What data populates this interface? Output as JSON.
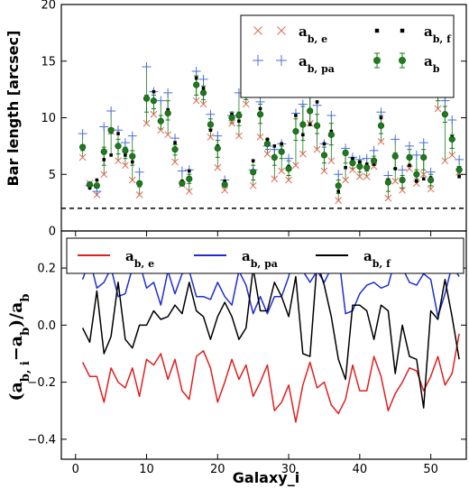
{
  "chart_data": [
    {
      "type": "scatter",
      "ylabel": "Bar length [arcsec]",
      "xlim": [
        -2,
        55
      ],
      "ylim": [
        0,
        20
      ],
      "yticks": [
        "0",
        "5",
        "10",
        "15",
        "20"
      ],
      "reference_line": {
        "y": 2,
        "style": "dashed",
        "color": "#000000"
      },
      "legend_position": "top-right",
      "series": [
        {
          "name": "a_b,e",
          "label_main": "a",
          "label_sub": "b, e",
          "marker": "x",
          "color": "#e06a50",
          "values": [
            6.5,
            4.2,
            3.2,
            5,
            8.8,
            6.2,
            5.8,
            4.5,
            3.2,
            9.5,
            10.3,
            8.9,
            8.5,
            6.1,
            4.1,
            3.5,
            11.5,
            11.2,
            8.3,
            5.6,
            3.6,
            9.5,
            8.4,
            11.2,
            4,
            8.3,
            6.8,
            4.6,
            5.3,
            4.5,
            5.8,
            6.8,
            9.5,
            7.2,
            5.3,
            6.2,
            2.7,
            4.5,
            5.4,
            4.8,
            4.8,
            5.7,
            7.9,
            2.9,
            4.4,
            3.6,
            5.5,
            4.2,
            5,
            3.7,
            10.8,
            6.2,
            6.7,
            5.2
          ]
        },
        {
          "name": "a_b,pa",
          "label_main": "a",
          "label_sub": "b, pa",
          "marker": "+",
          "color": "#4a6fd8",
          "values": [
            8.6,
            4,
            3.5,
            9.2,
            10.6,
            8.9,
            7.8,
            8.4,
            5.2,
            14.5,
            12.3,
            11.5,
            12.2,
            8.2,
            5.3,
            5.4,
            14.1,
            13.4,
            10.3,
            8.4,
            4.5,
            10.2,
            12.2,
            14.2,
            5.4,
            11.4,
            7.5,
            7.2,
            7.7,
            6.4,
            10.4,
            11.2,
            12.2,
            11.1,
            7.7,
            10.2,
            5,
            7.3,
            6.5,
            6.3,
            6.4,
            7.1,
            10.5,
            4.9,
            8.1,
            5.4,
            7.5,
            6.7,
            7.8,
            5.2,
            12.4,
            11.5,
            9.8,
            6.3
          ]
        },
        {
          "name": "a_b,f",
          "label_main": "a",
          "label_sub": "b, f",
          "marker": "square",
          "color": "#000000",
          "values": [
            7.3,
            3.8,
            4.5,
            6.3,
            6.7,
            8.6,
            6.7,
            6.1,
            4.2,
            11.6,
            12.3,
            9.8,
            10.7,
            7.8,
            4.4,
            5.3,
            13.5,
            12.6,
            8.9,
            7.5,
            4.4,
            10.3,
            9.7,
            12.4,
            6.2,
            10.8,
            8.1,
            7.5,
            7.7,
            5.7,
            10.2,
            8.5,
            9.4,
            11.4,
            7.7,
            8.8,
            3.5,
            5.6,
            6.4,
            6.1,
            5.9,
            5.9,
            10,
            4.5,
            5.5,
            4.5,
            5.8,
            4.4,
            4.6,
            4.7,
            12.3,
            11.9,
            8.3,
            4.8
          ]
        },
        {
          "name": "a_b",
          "label_main": "a",
          "label_sub": "b",
          "marker": "circle",
          "color": "#1e7a1e",
          "values": [
            7.4,
            4.1,
            4.0,
            7.0,
            8.9,
            7.5,
            7.1,
            6.6,
            4.2,
            11.7,
            11.5,
            9.7,
            10.4,
            7.2,
            4.2,
            4.6,
            12.9,
            12.2,
            9.4,
            7.3,
            4.1,
            10.0,
            10.2,
            12.5,
            5.2,
            10.3,
            7.7,
            6.5,
            7.0,
            5.5,
            8.8,
            9.4,
            10.6,
            9.3,
            6.7,
            8.5,
            4.0,
            6.9,
            6.0,
            5.7,
            5.6,
            6.2,
            9.3,
            4.3,
            6.6,
            4.5,
            6.5,
            5.0,
            6.5,
            4.5,
            12.1,
            10.3,
            8.1,
            5.4
          ]
        },
        {
          "name": "a_b upper error",
          "values": [
            7.6,
            4.3,
            4.2,
            7.4,
            9.0,
            8.1,
            7.4,
            7.1,
            4.4,
            12.0,
            12.0,
            10.2,
            11.5,
            7.6,
            4.4,
            5.0,
            13.7,
            12.8,
            9.9,
            8.0,
            4.3,
            10.5,
            10.5,
            13.8,
            5.8,
            11.2,
            8.1,
            7.2,
            7.5,
            6.2,
            9.9,
            11.0,
            11.8,
            10.3,
            7.4,
            9.5,
            4.5,
            7.1,
            6.4,
            6.1,
            5.8,
            6.6,
            10.2,
            4.6,
            6.9,
            4.9,
            7.2,
            5.4,
            7.2,
            5.0,
            12.6,
            11.0,
            8.5,
            5.7
          ]
        },
        {
          "name": "a_b lower error",
          "values": [
            7.1,
            3.9,
            3.8,
            5.8,
            8.6,
            6.8,
            6.4,
            5.8,
            3.9,
            10.5,
            10.8,
            9.0,
            9.8,
            6.7,
            4.0,
            4.2,
            12.0,
            11.6,
            9.0,
            6.5,
            3.9,
            9.5,
            9.3,
            11.6,
            4.5,
            9.5,
            7.2,
            5.8,
            6.4,
            4.9,
            8.0,
            8.0,
            9.6,
            8.6,
            6.0,
            7.6,
            3.3,
            6.0,
            5.5,
            5.2,
            5.3,
            5.8,
            8.6,
            3.5,
            5.5,
            3.8,
            5.8,
            4.6,
            5.4,
            4.0,
            11.5,
            9.6,
            7.3,
            5.0
          ]
        }
      ]
    },
    {
      "type": "line",
      "xlabel": "Galaxy_i",
      "ylabel_main": "(a",
      "ylabel_sub": "b, i",
      "ylabel_mid": "−a",
      "ylabel_sub2": "b",
      "ylabel_end": ")/a",
      "ylabel_sub3": "b",
      "xlim": [
        -2,
        55
      ],
      "ylim": [
        -0.47,
        0.33
      ],
      "xticks": [
        "0",
        "10",
        "20",
        "30",
        "40",
        "50"
      ],
      "yticks": [
        "−0.4",
        "−0.2",
        "0.0",
        "0.2"
      ],
      "legend_position": "top",
      "series": [
        {
          "name": "a_b,e",
          "label_main": "a",
          "label_sub": "b, e",
          "color": "#e02020",
          "values": [
            -0.13,
            -0.18,
            -0.18,
            -0.27,
            -0.15,
            -0.2,
            -0.22,
            -0.15,
            -0.25,
            -0.12,
            -0.14,
            -0.1,
            -0.19,
            -0.12,
            -0.23,
            -0.26,
            -0.11,
            -0.09,
            -0.15,
            -0.27,
            -0.2,
            -0.12,
            -0.19,
            -0.14,
            -0.25,
            -0.2,
            -0.14,
            -0.3,
            -0.27,
            -0.21,
            -0.34,
            -0.21,
            -0.13,
            -0.22,
            -0.2,
            -0.28,
            -0.31,
            -0.26,
            -0.14,
            -0.23,
            -0.23,
            -0.11,
            -0.18,
            -0.3,
            -0.24,
            -0.2,
            -0.15,
            -0.16,
            -0.23,
            -0.18,
            -0.11,
            -0.21,
            -0.17,
            -0.03
          ]
        },
        {
          "name": "a_b,pa",
          "label_main": "a",
          "label_sub": "b, pa",
          "color": "#1f2fd0",
          "values": [
            0.16,
            0.23,
            0.13,
            0.15,
            0.2,
            0.1,
            0.11,
            0.2,
            0.22,
            0.13,
            0.15,
            0.07,
            0.19,
            0.11,
            0.18,
            0.19,
            0.1,
            0.1,
            0.09,
            0.15,
            0.1,
            0.07,
            0.19,
            0.14,
            0.04,
            0.1,
            0.04,
            0.1,
            0.1,
            0.17,
            0.28,
            0.19,
            0.15,
            0.19,
            0.15,
            0.2,
            0.25,
            0.04,
            0.05,
            0.11,
            0.14,
            0.15,
            0.13,
            0.14,
            0.23,
            0.2,
            0.15,
            0.14,
            0.18,
            0.16,
            0.03,
            0.11,
            0.21,
            0.17
          ]
        },
        {
          "name": "a_b,f",
          "label_main": "a",
          "label_sub": "b, f",
          "color": "#000000",
          "values": [
            -0.01,
            -0.06,
            0.12,
            -0.1,
            -0.04,
            0.15,
            -0.05,
            -0.08,
            0.0,
            0.0,
            0.05,
            0.02,
            0.03,
            0.07,
            0.04,
            0.15,
            0.05,
            0.03,
            -0.05,
            0.03,
            0.08,
            0.03,
            -0.05,
            -0.01,
            0.2,
            0.05,
            0.05,
            0.15,
            0.1,
            0.03,
            0.17,
            -0.1,
            -0.11,
            0.22,
            0.14,
            0.03,
            -0.12,
            -0.19,
            0.07,
            0.07,
            0.05,
            -0.05,
            0.07,
            0.05,
            -0.17,
            0.0,
            -0.11,
            -0.12,
            -0.29,
            0.05,
            0.02,
            0.16,
            0.03,
            -0.12
          ]
        }
      ]
    }
  ]
}
